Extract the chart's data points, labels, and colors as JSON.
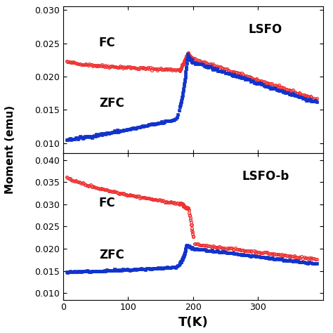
{
  "top_panel": {
    "label": "LSFO",
    "ylim": [
      0.0085,
      0.0305
    ],
    "yticks": [
      0.01,
      0.015,
      0.02,
      0.025,
      0.03
    ],
    "fc_color": "#EE3333",
    "zfc_color": "#1133CC",
    "fc_label": "FC",
    "zfc_label": "ZFC"
  },
  "bottom_panel": {
    "label": "LSFO-b",
    "ylim": [
      0.0085,
      0.0415
    ],
    "yticks": [
      0.01,
      0.015,
      0.02,
      0.025,
      0.03,
      0.035,
      0.04
    ],
    "fc_color": "#EE3333",
    "zfc_color": "#1133CC",
    "fc_label": "FC",
    "zfc_label": "ZFC"
  },
  "xlim": [
    0,
    400
  ],
  "xticks": [
    0,
    100,
    200,
    300
  ],
  "xlabel": "T(K)",
  "ylabel": "Moment (emu)",
  "background_color": "#ffffff",
  "marker_size": 2.8,
  "transition_T": 195
}
